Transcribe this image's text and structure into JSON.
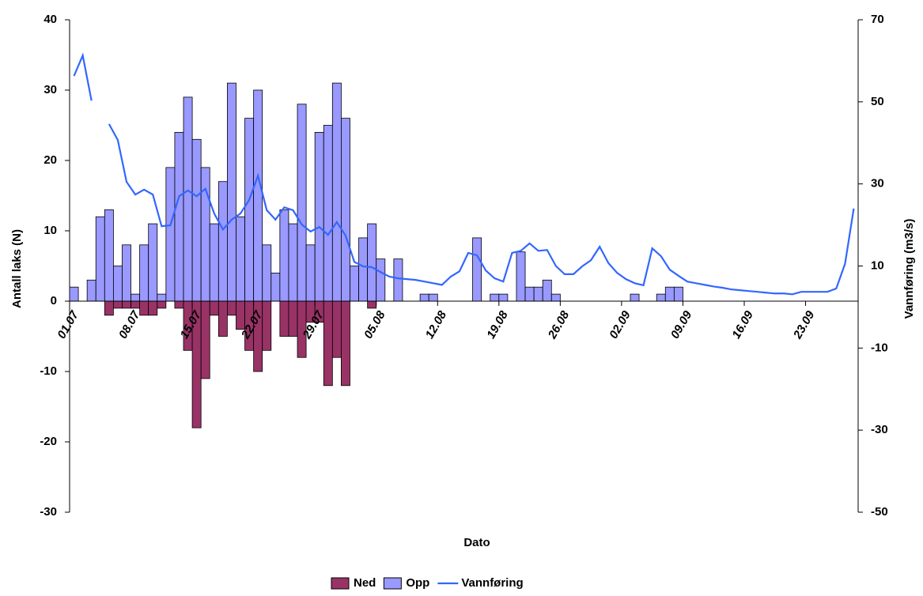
{
  "chart_data": {
    "type": "bar",
    "x_label": "Dato",
    "y_label": "Antall laks (N)",
    "y2_label": "Vannføring (m3/s)",
    "categories": [
      "01.07",
      null,
      null,
      null,
      null,
      null,
      null,
      "08.07",
      null,
      null,
      null,
      null,
      null,
      null,
      "15.07",
      null,
      null,
      null,
      null,
      null,
      null,
      "22.07",
      null,
      null,
      null,
      null,
      null,
      null,
      "29.07",
      null,
      null,
      null,
      null,
      null,
      null,
      "05.08",
      null,
      null,
      null,
      null,
      null,
      null,
      "12.08",
      null,
      null,
      null,
      null,
      null,
      null,
      "19.08",
      null,
      null,
      null,
      null,
      null,
      null,
      "26.08",
      null,
      null,
      null,
      null,
      null,
      null,
      "02.09",
      null,
      null,
      null,
      null,
      null,
      null,
      "09.09",
      null,
      null,
      null,
      null,
      null,
      null,
      "16.09",
      null,
      null,
      null,
      null,
      null,
      null,
      "23.09",
      null,
      null,
      null,
      null,
      null
    ],
    "series": [
      {
        "name": "Ned",
        "type": "bar",
        "color": "#993366",
        "values": [
          0,
          0,
          0,
          0,
          -2,
          -1,
          -1,
          -1,
          -2,
          -2,
          -1,
          0,
          -1,
          -7,
          -18,
          -11,
          -2,
          -5,
          -2,
          -4,
          -7,
          -10,
          -7,
          0,
          -5,
          -5,
          -8,
          -3,
          -3,
          -12,
          -8,
          -12,
          0,
          0,
          -1,
          0,
          0,
          0,
          0,
          0,
          0,
          0,
          0,
          0,
          0,
          0,
          0,
          0,
          0,
          0,
          0,
          0,
          0,
          0,
          0,
          0,
          0,
          0,
          0,
          0,
          0,
          0,
          0,
          0,
          0,
          0,
          0,
          0,
          0,
          0,
          0,
          0,
          0,
          0,
          0,
          0,
          0,
          0,
          0,
          0,
          0,
          0,
          0,
          0,
          0,
          0,
          0,
          0,
          0,
          0
        ]
      },
      {
        "name": "Opp",
        "type": "bar",
        "color": "#9999ff",
        "values": [
          2,
          0,
          3,
          12,
          13,
          5,
          8,
          1,
          8,
          11,
          1,
          19,
          24,
          29,
          23,
          19,
          11,
          17,
          31,
          12,
          26,
          30,
          8,
          4,
          13,
          11,
          28,
          8,
          24,
          25,
          31,
          26,
          5,
          9,
          11,
          6,
          0,
          6,
          0,
          0,
          1,
          1,
          0,
          0,
          0,
          0,
          9,
          0,
          1,
          1,
          0,
          7,
          2,
          2,
          3,
          1,
          0,
          0,
          0,
          0,
          0,
          0,
          0,
          0,
          1,
          0,
          0,
          1,
          2,
          2,
          0,
          0,
          0,
          0,
          0,
          0,
          0,
          0,
          0,
          0,
          0,
          0,
          0,
          0,
          0,
          0,
          0,
          0,
          0,
          0
        ]
      },
      {
        "name": "Vannføring",
        "type": "line",
        "axis": "y2",
        "color": "#3366ff",
        "values": [
          56.3,
          61.3,
          50.3,
          null,
          44.6,
          40.7,
          30.5,
          27.4,
          28.6,
          27.4,
          19.7,
          19.9,
          27,
          28.4,
          27,
          28.8,
          22.8,
          18.9,
          21.3,
          22.8,
          26.1,
          32,
          23.6,
          21.3,
          24.3,
          23.6,
          20.1,
          18.4,
          19.5,
          17.6,
          20.7,
          17.4,
          11,
          9.9,
          9.7,
          8.5,
          7.4,
          7,
          6.8,
          6.6,
          6.2,
          5.8,
          5.4,
          7.4,
          8.7,
          13.2,
          12.6,
          8.9,
          7,
          6.2,
          13.2,
          13.7,
          15.5,
          13.7,
          13.9,
          10,
          8,
          8,
          9.9,
          11.4,
          14.7,
          10.7,
          8.3,
          6.8,
          5.8,
          5.3,
          14.3,
          12.4,
          9.1,
          7.6,
          6.2,
          5.8,
          5.4,
          5,
          4.7,
          4.3,
          4.1,
          3.9,
          3.7,
          3.5,
          3.3,
          3.3,
          3.1,
          3.7,
          3.7,
          3.7,
          3.7,
          4.5,
          10.5,
          24
        ]
      }
    ],
    "ylim": [
      -30,
      40
    ],
    "yticks": [
      -30,
      -20,
      -10,
      0,
      10,
      20,
      30,
      40
    ],
    "y2lim": [
      -50,
      70
    ],
    "y2ticks": [
      -50,
      -30,
      -10,
      10,
      30,
      50,
      70
    ],
    "grid": false,
    "legend": "bottom"
  }
}
